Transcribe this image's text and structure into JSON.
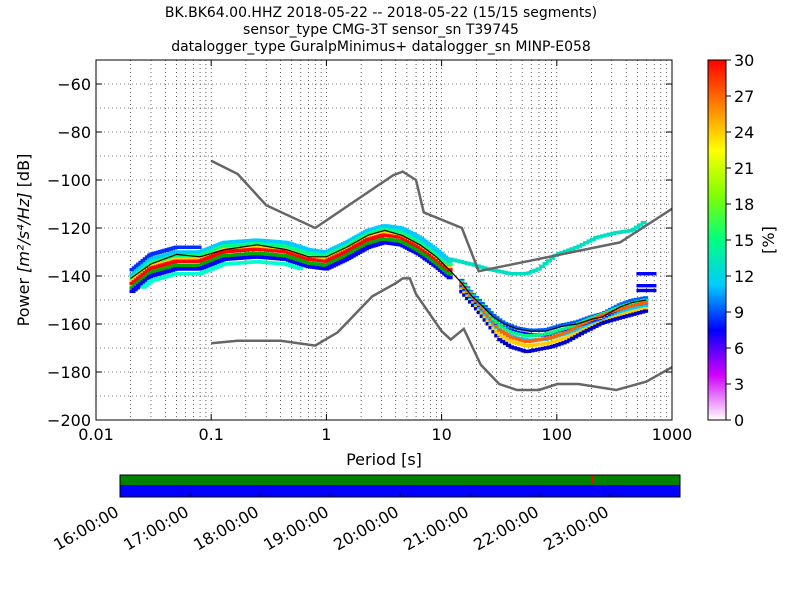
{
  "title": {
    "line1": "BK.BK64.00.HHZ   2018-05-22 -- 2018-05-22  (15/15 segments)",
    "line2": "sensor_type CMG-3T sensor_sn T39745",
    "line3": "datalogger_type GuralpMinimus+ datalogger_sn MINP-E058"
  },
  "chart_data": [
    {
      "type": "heatmap",
      "xlabel": "Period [s]",
      "ylabel_prefix": "Power ",
      "ylabel_math": "[m²/s⁴/Hz]",
      "ylabel_suffix": " [dB]",
      "x_scale": "log",
      "xlim": [
        0.01,
        1000
      ],
      "ylim": [
        -200,
        -50
      ],
      "x_ticks": [
        {
          "value": 0.01,
          "label": "0.01"
        },
        {
          "value": 0.1,
          "label": "0.1"
        },
        {
          "value": 1,
          "label": "1"
        },
        {
          "value": 10,
          "label": "10"
        },
        {
          "value": 100,
          "label": "100"
        },
        {
          "value": 1000,
          "label": "1000"
        }
      ],
      "y_ticks": [
        {
          "value": -60,
          "label": "−60"
        },
        {
          "value": -80,
          "label": "−80"
        },
        {
          "value": -100,
          "label": "−100"
        },
        {
          "value": -120,
          "label": "−120"
        },
        {
          "value": -140,
          "label": "−140"
        },
        {
          "value": -160,
          "label": "−160"
        },
        {
          "value": -180,
          "label": "−180"
        },
        {
          "value": -200,
          "label": "−200"
        }
      ],
      "grid": true,
      "colorbar": {
        "label": "[%]",
        "range": [
          0,
          30
        ],
        "ticks": [
          0,
          3,
          6,
          9,
          12,
          15,
          18,
          21,
          24,
          27,
          30
        ],
        "colors": [
          "#ffffff",
          "#d000ff",
          "#0000ff",
          "#00ccff",
          "#00ff80",
          "#80ff00",
          "#ffff00",
          "#ff8000",
          "#ff0000"
        ]
      },
      "noise_models": {
        "high": [
          [
            0.1,
            -92
          ],
          [
            0.17,
            -97.5
          ],
          [
            0.3,
            -110.5
          ],
          [
            0.8,
            -120
          ],
          [
            3.8,
            -98
          ],
          [
            4.6,
            -96.5
          ],
          [
            6,
            -100
          ],
          [
            7,
            -113.5
          ],
          [
            15,
            -120
          ],
          [
            21,
            -138
          ],
          [
            354,
            -126
          ],
          [
            1000,
            -112
          ]
        ],
        "low": [
          [
            0.1,
            -168
          ],
          [
            0.17,
            -167
          ],
          [
            0.4,
            -167
          ],
          [
            0.8,
            -169
          ],
          [
            1.25,
            -163.5
          ],
          [
            2.5,
            -148.5
          ],
          [
            4,
            -143
          ],
          [
            4.6,
            -141
          ],
          [
            5.3,
            -141
          ],
          [
            6,
            -147.5
          ],
          [
            10,
            -163
          ],
          [
            12,
            -166.5
          ],
          [
            15.6,
            -162
          ],
          [
            21.9,
            -177
          ],
          [
            31.6,
            -185
          ],
          [
            45,
            -187.5
          ],
          [
            70,
            -187.5
          ],
          [
            101,
            -185
          ],
          [
            154,
            -185
          ],
          [
            328,
            -187.5
          ],
          [
            600,
            -184
          ],
          [
            1000,
            -178
          ]
        ]
      },
      "mean_curve": [
        [
          0.02,
          -141
        ],
        [
          0.03,
          -135
        ],
        [
          0.05,
          -131
        ],
        [
          0.08,
          -132
        ],
        [
          0.13,
          -129
        ],
        [
          0.25,
          -127
        ],
        [
          0.45,
          -129
        ],
        [
          0.7,
          -132
        ],
        [
          1,
          -132
        ],
        [
          1.5,
          -128
        ],
        [
          2.3,
          -123
        ],
        [
          3.2,
          -121
        ],
        [
          4.5,
          -123
        ],
        [
          6.5,
          -127
        ],
        [
          9,
          -132
        ],
        [
          12,
          -138
        ],
        [
          15,
          -143
        ],
        [
          18,
          -148
        ],
        [
          22,
          -152
        ],
        [
          28,
          -157
        ],
        [
          35,
          -160
        ],
        [
          45,
          -162
        ],
        [
          60,
          -163
        ],
        [
          80,
          -163
        ],
        [
          110,
          -161
        ],
        [
          150,
          -160
        ],
        [
          200,
          -158
        ],
        [
          250,
          -157
        ],
        [
          350,
          -153
        ],
        [
          450,
          -151
        ],
        [
          600,
          -150
        ]
      ],
      "mode_band": [
        [
          0.02,
          -143
        ],
        [
          0.03,
          -136
        ],
        [
          0.05,
          -133
        ],
        [
          0.08,
          -133
        ],
        [
          0.13,
          -129
        ],
        [
          0.25,
          -128
        ],
        [
          0.45,
          -129
        ],
        [
          0.7,
          -132
        ],
        [
          1,
          -133
        ],
        [
          1.5,
          -129
        ],
        [
          2.3,
          -124
        ],
        [
          3.2,
          -122
        ],
        [
          4.5,
          -123
        ],
        [
          6.5,
          -127
        ],
        [
          9,
          -132
        ],
        [
          12,
          -137
        ]
      ],
      "upper_cyan": [
        [
          12,
          -133
        ],
        [
          18,
          -135
        ],
        [
          25,
          -137
        ],
        [
          40,
          -139
        ],
        [
          55,
          -139
        ],
        [
          70,
          -137
        ],
        [
          100,
          -131
        ],
        [
          150,
          -128
        ],
        [
          220,
          -124
        ],
        [
          320,
          -122
        ],
        [
          450,
          -121
        ],
        [
          600,
          -117
        ]
      ],
      "lower_scatter": [
        [
          15,
          -145
        ],
        [
          20,
          -152
        ],
        [
          25,
          -158
        ],
        [
          32,
          -165
        ],
        [
          40,
          -168
        ],
        [
          55,
          -170
        ],
        [
          70,
          -169
        ],
        [
          90,
          -168
        ],
        [
          120,
          -166
        ],
        [
          170,
          -162
        ],
        [
          250,
          -158
        ],
        [
          350,
          -156
        ],
        [
          500,
          -154
        ],
        [
          600,
          -153
        ]
      ],
      "stray_dashes": [
        [
          600,
          -139
        ],
        [
          600,
          -144
        ],
        [
          600,
          -146
        ]
      ]
    },
    {
      "type": "table",
      "description": "data availability",
      "time_ticks": [
        "16:00:00",
        "17:00:00",
        "18:00:00",
        "19:00:00",
        "20:00:00",
        "21:00:00",
        "22:00:00",
        "23:00:00"
      ],
      "gaps_color": "#008000",
      "data_color": "#0000ff"
    }
  ]
}
